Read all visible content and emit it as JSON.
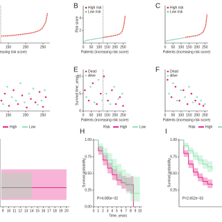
{
  "chart_data": [
    {
      "type": "line",
      "xlabel": "Patients (increasing risk score)",
      "xlim": [
        0,
        270
      ],
      "ylim": [
        0,
        6
      ],
      "xticks": [
        150,
        200,
        250
      ],
      "cutoff": 128,
      "series": [
        {
          "name": "High risk",
          "color": "#d7301f",
          "x": [
            130,
            145,
            160,
            175,
            190,
            205,
            220,
            235,
            245,
            252,
            258,
            263
          ],
          "values": [
            1.1,
            1.15,
            1.2,
            1.3,
            1.4,
            1.5,
            1.65,
            1.9,
            2.2,
            2.7,
            3.4,
            4.8
          ]
        }
      ]
    },
    {
      "type": "line",
      "label": "B",
      "ylabel": "Risk score",
      "xlabel": "Patients (increasing risk score)",
      "xlim": [
        0,
        270
      ],
      "ylim": [
        0,
        6
      ],
      "xticks": [
        0,
        50,
        100,
        150,
        200,
        250
      ],
      "yticks": [
        2,
        4
      ],
      "cutoff": 123,
      "legend": true,
      "series": [
        {
          "name": "High risk",
          "color": "#d7301f",
          "x": [
            125,
            150,
            175,
            200,
            220,
            235,
            245,
            252,
            258,
            263
          ],
          "values": [
            0.9,
            1.0,
            1.1,
            1.2,
            1.35,
            1.55,
            1.9,
            2.5,
            3.3,
            4.4
          ]
        },
        {
          "name": "Low risk",
          "color": "#66c2a4",
          "x": [
            0,
            20,
            40,
            60,
            80,
            100,
            120
          ],
          "values": [
            0.2,
            0.4,
            0.5,
            0.6,
            0.7,
            0.75,
            0.85
          ]
        }
      ]
    },
    {
      "type": "line",
      "label": "C",
      "xlabel": "Patients (increasing risk score)",
      "xlim": [
        0,
        270
      ],
      "ylim": [
        0,
        6
      ],
      "xticks": [
        0,
        50,
        100,
        150,
        200,
        250
      ],
      "legend": true,
      "series": [
        {
          "name": "High risk",
          "color": "#d7301f",
          "x": [
            125,
            150,
            175,
            200,
            220,
            240,
            255,
            263
          ],
          "values": [
            0.9,
            1.0,
            1.1,
            1.2,
            1.4,
            1.8,
            2.8,
            4.6
          ]
        },
        {
          "name": "Low risk",
          "color": "#66c2a4",
          "x": [
            0,
            30,
            60,
            90,
            120
          ],
          "values": [
            0.3,
            0.45,
            0.6,
            0.7,
            0.85
          ]
        }
      ]
    },
    {
      "type": "scatter",
      "xlim": [
        0,
        270
      ],
      "ylim": [
        0,
        12
      ],
      "xticks": [
        150,
        200,
        250
      ],
      "series": [
        {
          "name": "Dead",
          "color": "#e7298a",
          "x": [
            130,
            140,
            152,
            165,
            178,
            190,
            203,
            215,
            228,
            240,
            250,
            258
          ],
          "values": [
            3,
            5,
            1.5,
            6,
            2,
            4.5,
            1,
            3.5,
            2.5,
            5.5,
            1.2,
            4
          ]
        },
        {
          "name": "Alive",
          "color": "#8fe3b0",
          "x": [
            135,
            147,
            160,
            172,
            185,
            197,
            210,
            222,
            235,
            246,
            255
          ],
          "values": [
            2,
            7,
            4,
            3,
            8,
            2.5,
            5,
            6.5,
            1.8,
            3,
            6
          ]
        }
      ]
    },
    {
      "type": "scatter",
      "label": "E",
      "ylabel": "Survival time, years",
      "xlabel": "Patients (increasing risk score)",
      "xlim": [
        0,
        270
      ],
      "ylim": [
        0,
        12
      ],
      "xticks": [
        0,
        50,
        100,
        150,
        200,
        250
      ],
      "yticks": [
        0,
        5,
        10
      ],
      "cutoff": 123,
      "legend": true,
      "series": [
        {
          "name": "Dead",
          "color": "#e7298a",
          "x": [
            10,
            35,
            60,
            85,
            110,
            130,
            155,
            180,
            205,
            230,
            250
          ],
          "values": [
            6,
            3,
            8,
            2,
            5,
            10,
            3,
            6,
            2,
            4,
            1.5
          ]
        },
        {
          "name": "Alive",
          "color": "#8fe3b0",
          "x": [
            20,
            45,
            70,
            95,
            120,
            145,
            170,
            195,
            220,
            245
          ],
          "values": [
            4,
            7,
            2.5,
            9,
            3,
            5,
            2,
            7,
            3.5,
            5
          ]
        }
      ]
    },
    {
      "type": "scatter",
      "label": "F",
      "xlabel": "Patients (increasing risk score)",
      "xlim": [
        0,
        270
      ],
      "ylim": [
        0,
        12
      ],
      "xticks": [
        0,
        50,
        100,
        150,
        200,
        250
      ],
      "legend": true,
      "series": [
        {
          "name": "Dead",
          "color": "#e7298a",
          "x": [
            15,
            40,
            65,
            90,
            115,
            140,
            165,
            190,
            215,
            240
          ],
          "values": [
            9,
            4,
            7,
            3,
            6,
            2,
            5,
            3,
            2,
            1.5
          ]
        },
        {
          "name": "Alive",
          "color": "#8fe3b0",
          "x": [
            25,
            50,
            75,
            100,
            125,
            150,
            175,
            200,
            225,
            250
          ],
          "values": [
            5,
            8,
            3,
            6,
            4,
            7,
            2.5,
            4,
            3,
            2
          ]
        }
      ]
    },
    {
      "type": "step",
      "xlim": [
        8.5,
        20.5
      ],
      "ylim": [
        0,
        1
      ],
      "xticks": [
        9,
        10,
        11,
        12,
        13,
        14,
        15,
        16,
        17,
        18,
        19,
        20
      ],
      "legend": true,
      "series": [
        {
          "name": "High",
          "color": "#e7298a",
          "x": [
            8.7,
            12,
            14,
            16,
            18,
            20
          ],
          "values": [
            0.28,
            0.28,
            0.28,
            0.28,
            0.28,
            0.28
          ],
          "lower": [
            0.1,
            0.1,
            0.1,
            0.1,
            0.1,
            0.1
          ],
          "upper": [
            0.55,
            0.55,
            0.55,
            0.55,
            0.55,
            0.55
          ]
        },
        {
          "name": "Low",
          "color": "#8fe3b0",
          "x": [
            8.7,
            10,
            12,
            14
          ],
          "values": [
            0.3,
            0.3,
            0.3,
            0.3
          ],
          "lower": [
            0.12,
            0.12,
            0.12,
            0.12
          ],
          "upper": [
            0.5,
            0.5,
            0.5,
            0.5
          ]
        }
      ]
    },
    {
      "type": "step",
      "label": "H",
      "legend_title": "Risk",
      "ylabel": "Survival probability",
      "xlabel": "Time, years",
      "xlim": [
        0,
        10.5
      ],
      "ylim": [
        0,
        1.02
      ],
      "xticks": [
        0,
        1,
        2,
        3,
        4,
        5,
        6,
        7,
        8,
        9,
        10
      ],
      "yticks": [
        {
          "value": 0,
          "label": "0.00"
        },
        {
          "value": 0.25,
          "label": "0.25"
        },
        {
          "value": 0.5,
          "label": "0.50"
        },
        {
          "value": 0.75,
          "label": "0.75"
        },
        {
          "value": 1,
          "label": "1.00"
        }
      ],
      "legend": true,
      "pvalue": "P=4.085e−02",
      "series": [
        {
          "name": "High",
          "color": "#e7298a",
          "x": [
            0,
            1,
            2,
            3,
            4,
            5,
            6,
            7,
            8,
            8.6
          ],
          "values": [
            1,
            0.84,
            0.7,
            0.58,
            0.48,
            0.4,
            0.36,
            0.33,
            0.33,
            0
          ],
          "lower": [
            1,
            0.78,
            0.62,
            0.5,
            0.4,
            0.32,
            0.27,
            0.23,
            0.2,
            0
          ],
          "upper": [
            1,
            0.9,
            0.78,
            0.66,
            0.57,
            0.5,
            0.46,
            0.44,
            0.46,
            0
          ]
        },
        {
          "name": "Low",
          "color": "#8fe3b0",
          "x": [
            0,
            1,
            2,
            3,
            4,
            5,
            6,
            7,
            8,
            10
          ],
          "values": [
            1,
            0.9,
            0.8,
            0.7,
            0.6,
            0.52,
            0.42,
            0.35,
            0.2,
            0.2
          ],
          "lower": [
            1,
            0.84,
            0.72,
            0.6,
            0.5,
            0.4,
            0.3,
            0.2,
            0.08,
            0.08
          ],
          "upper": [
            1,
            0.95,
            0.88,
            0.8,
            0.72,
            0.64,
            0.56,
            0.5,
            0.45,
            0.45
          ]
        }
      ]
    },
    {
      "type": "step",
      "label": "I",
      "legend_title": "Risk",
      "ylabel": "Survival probability",
      "xlim": [
        0,
        10.5
      ],
      "ylim": [
        0,
        1.02
      ],
      "yticks": [
        {
          "value": 0.25,
          "label": "0.25"
        },
        {
          "value": 0.5,
          "label": "0.50"
        },
        {
          "value": 0.75,
          "label": "0.75"
        },
        {
          "value": 1,
          "label": "1.00"
        }
      ],
      "legend": true,
      "pvalue": "P=2.652e−03",
      "series": [
        {
          "name": "High",
          "color": "#e7298a",
          "x": [
            0,
            1,
            2,
            3,
            4,
            5,
            6,
            7
          ],
          "values": [
            1,
            0.8,
            0.64,
            0.52,
            0.44,
            0.38,
            0.34,
            0.32
          ],
          "lower": [
            1,
            0.75,
            0.58,
            0.46,
            0.38,
            0.32,
            0.28,
            0.25
          ],
          "upper": [
            1,
            0.85,
            0.7,
            0.58,
            0.5,
            0.44,
            0.41,
            0.39
          ]
        },
        {
          "name": "Low",
          "color": "#8fe3b0",
          "x": [
            0,
            1,
            2,
            3,
            4,
            5,
            6,
            7
          ],
          "values": [
            1,
            0.92,
            0.84,
            0.76,
            0.7,
            0.64,
            0.6,
            0.56
          ],
          "lower": [
            1,
            0.88,
            0.79,
            0.7,
            0.63,
            0.57,
            0.52,
            0.47
          ],
          "upper": [
            1,
            0.96,
            0.89,
            0.82,
            0.77,
            0.71,
            0.68,
            0.65
          ]
        }
      ]
    }
  ]
}
